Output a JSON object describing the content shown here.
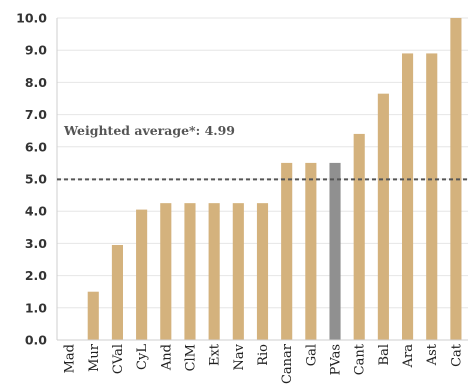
{
  "chart_data": {
    "type": "bar",
    "title": "",
    "xlabel": "",
    "ylabel": "",
    "ylim": [
      0,
      10
    ],
    "yticks": [
      "0.0",
      "1.0",
      "2.0",
      "3.0",
      "4.0",
      "5.0",
      "6.0",
      "7.0",
      "8.0",
      "9.0",
      "10.0"
    ],
    "grid": "horizontal",
    "categories": [
      "Mad",
      "Mur",
      "CVal",
      "CyL",
      "And",
      "ClM",
      "Ext",
      "Nav",
      "Rio",
      "Canar",
      "Gal",
      "PVas",
      "Cant",
      "Bal",
      "Ara",
      "Ast",
      "Cat"
    ],
    "values": [
      0,
      1.5,
      2.95,
      4.05,
      4.25,
      4.25,
      4.25,
      4.25,
      4.25,
      5.5,
      5.5,
      5.5,
      6.4,
      7.65,
      8.9,
      8.9,
      10.0
    ],
    "colors": {
      "default": "#d4b27d",
      "highlight": "#909090",
      "reference_line": "#555555"
    },
    "highlight_category": "PVas",
    "reference_line": {
      "value": 4.99,
      "label": "Weighted average*: 4.99"
    }
  }
}
